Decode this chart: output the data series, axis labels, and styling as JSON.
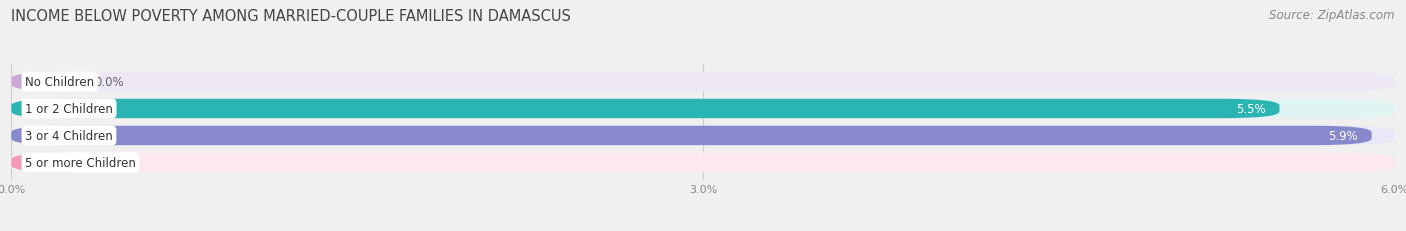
{
  "title": "INCOME BELOW POVERTY AMONG MARRIED-COUPLE FAMILIES IN DAMASCUS",
  "source": "Source: ZipAtlas.com",
  "categories": [
    "No Children",
    "1 or 2 Children",
    "3 or 4 Children",
    "5 or more Children"
  ],
  "values": [
    0.0,
    5.5,
    5.9,
    0.0
  ],
  "bar_colors": [
    "#c9a8d4",
    "#2ab5b2",
    "#8888cc",
    "#f599b8"
  ],
  "bar_bg_colors": [
    "#ede8f4",
    "#e0f4f4",
    "#e8e8f8",
    "#fde8f0"
  ],
  "value_label_colors": [
    "#888888",
    "#ffffff",
    "#ffffff",
    "#888888"
  ],
  "xlim": [
    0,
    6.0
  ],
  "xticks": [
    0.0,
    3.0,
    6.0
  ],
  "xtick_labels": [
    "0.0%",
    "3.0%",
    "6.0%"
  ],
  "title_fontsize": 10.5,
  "source_fontsize": 8.5,
  "value_label_fontsize": 8.5,
  "category_fontsize": 8.5,
  "background_color": "#f0f0f0"
}
